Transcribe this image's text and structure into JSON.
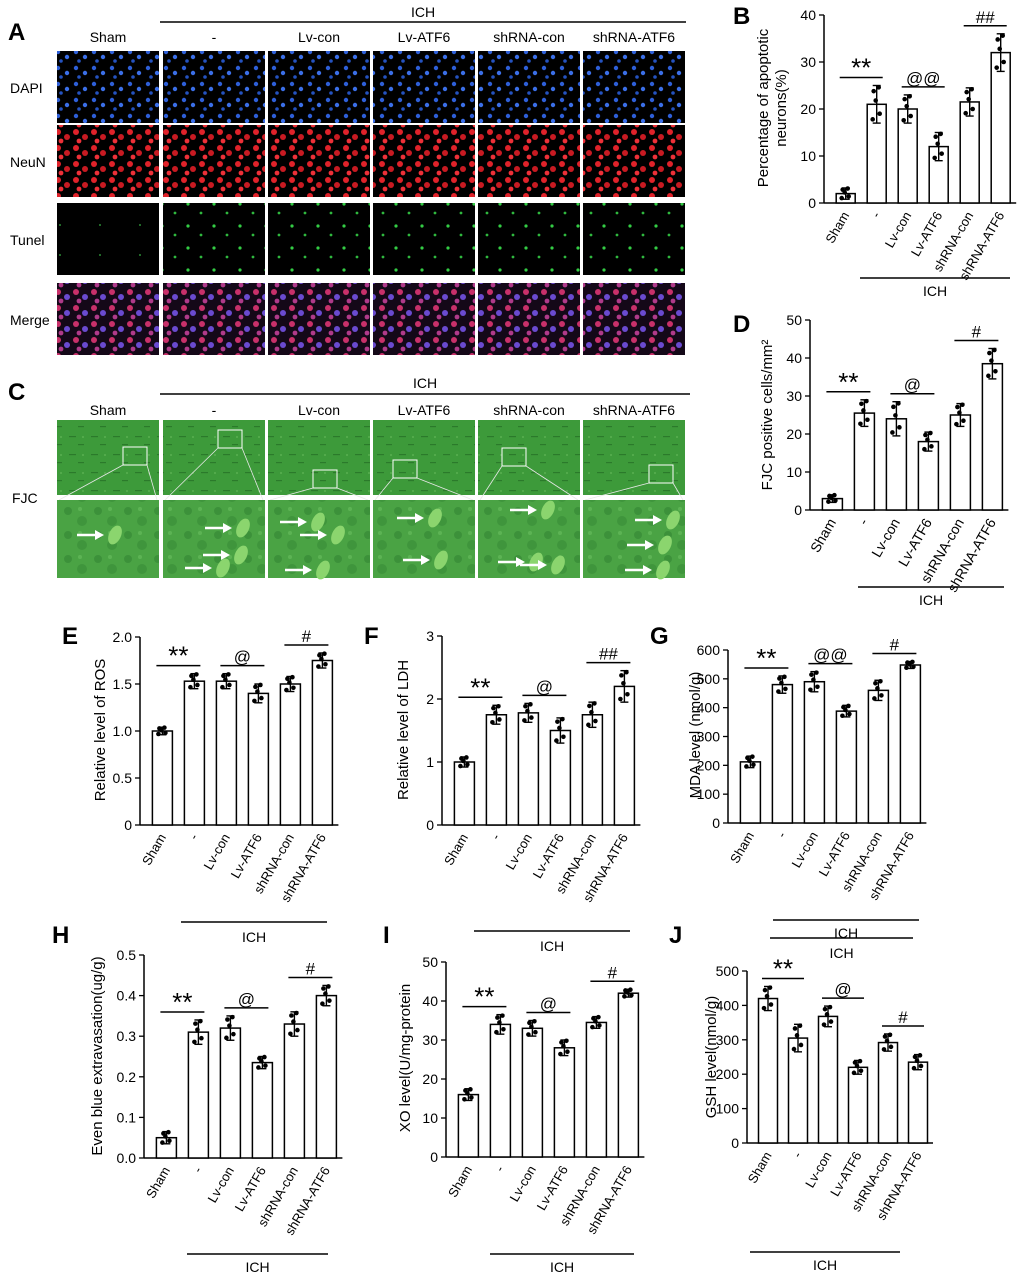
{
  "panels": {
    "A": {
      "letter": "A",
      "group_label": "ICH",
      "columns": [
        "Sham",
        "-",
        "Lv-con",
        "Lv-ATF6",
        "shRNA-con",
        "shRNA-ATF6"
      ],
      "rows": [
        "DAPI",
        "NeuN",
        "Tunel",
        "Merge"
      ],
      "colors": {
        "DAPI": "#2e5fd8",
        "NeuN": "#e0222a",
        "Tunel": "#33cc44",
        "Merge": "#b04a8a"
      }
    },
    "C": {
      "letter": "C",
      "group_label": "ICH",
      "columns": [
        "Sham",
        "-",
        "Lv-con",
        "Lv-ATF6",
        "shRNA-con",
        "shRNA-ATF6"
      ],
      "row_label": "FJC",
      "colors": {
        "tissue": "#3d9a3a",
        "tissue_zoom": "#4aa344",
        "cell": "#8bd56e"
      }
    }
  },
  "chart_data": [
    {
      "id": "B",
      "letter": "B",
      "type": "bar",
      "categories": [
        "Sham",
        "-",
        "Lv-con",
        "Lv-ATF6",
        "shRNA-con",
        "shRNA-ATF6"
      ],
      "values": [
        2,
        21,
        20,
        12,
        21.5,
        32
      ],
      "errors": [
        1.2,
        4,
        3,
        3,
        3,
        4
      ],
      "ylabel": "Percentage of apoptotic neurons(%)",
      "ylabel_lines": [
        "Percentage of apoptotic",
        "neurons(%)"
      ],
      "ylim": [
        0,
        40
      ],
      "yticks": [
        "0",
        "10",
        "20",
        "30",
        "40"
      ],
      "group_label": "ICH",
      "significance": [
        {
          "from": 0,
          "to": 1,
          "label": "**"
        },
        {
          "from": 2,
          "to": 3,
          "label": "@@"
        },
        {
          "from": 4,
          "to": 5,
          "label": "##"
        }
      ]
    },
    {
      "id": "D",
      "letter": "D",
      "type": "bar",
      "categories": [
        "Sham",
        "-",
        "Lv-con",
        "Lv-ATF6",
        "shRNA-con",
        "shRNA-ATF6"
      ],
      "values": [
        3,
        25.5,
        24,
        18,
        25,
        38.5
      ],
      "errors": [
        1,
        3.5,
        4.5,
        2.5,
        3,
        4
      ],
      "ylabel": "FJC positive cells/mm²",
      "ylabel_lines": [
        "FJC positive cells/mm²"
      ],
      "ylim": [
        0,
        50
      ],
      "yticks": [
        "0",
        "10",
        "20",
        "30",
        "40",
        "50"
      ],
      "group_label": "ICH",
      "significance": [
        {
          "from": 0,
          "to": 1,
          "label": "**"
        },
        {
          "from": 2,
          "to": 3,
          "label": "@"
        },
        {
          "from": 4,
          "to": 5,
          "label": "#"
        }
      ]
    },
    {
      "id": "E",
      "letter": "E",
      "type": "bar",
      "categories": [
        "Sham",
        "-",
        "Lv-con",
        "Lv-ATF6",
        "shRNA-con",
        "shRNA-ATF6"
      ],
      "values": [
        1.0,
        1.53,
        1.53,
        1.4,
        1.5,
        1.75
      ],
      "errors": [
        0.04,
        0.08,
        0.08,
        0.1,
        0.08,
        0.08
      ],
      "ylabel": "Relative level of ROS",
      "ylabel_lines": [
        "Relative level of ROS"
      ],
      "ylim": [
        0,
        2.0
      ],
      "yticks": [
        "0",
        "0.5",
        "1.0",
        "1.5",
        "2.0"
      ],
      "group_label": "",
      "significance": [
        {
          "from": 0,
          "to": 1,
          "label": "**"
        },
        {
          "from": 2,
          "to": 3,
          "label": "@"
        },
        {
          "from": 4,
          "to": 5,
          "label": "#"
        }
      ]
    },
    {
      "id": "F",
      "letter": "F",
      "type": "bar",
      "categories": [
        "Sham",
        "-",
        "Lv-con",
        "Lv-ATF6",
        "shRNA-con",
        "shRNA-ATF6"
      ],
      "values": [
        1.0,
        1.75,
        1.78,
        1.5,
        1.75,
        2.2
      ],
      "errors": [
        0.08,
        0.15,
        0.15,
        0.2,
        0.2,
        0.25
      ],
      "ylabel": "Relative level of LDH",
      "ylabel_lines": [
        "Relative level of LDH"
      ],
      "ylim": [
        0,
        3
      ],
      "yticks": [
        "0",
        "1",
        "2",
        "3"
      ],
      "group_label": "",
      "significance": [
        {
          "from": 0,
          "to": 1,
          "label": "**"
        },
        {
          "from": 2,
          "to": 3,
          "label": "@"
        },
        {
          "from": 4,
          "to": 5,
          "label": "##"
        }
      ]
    },
    {
      "id": "G",
      "letter": "G",
      "type": "bar",
      "categories": [
        "Sham",
        "-",
        "Lv-con",
        "Lv-ATF6",
        "shRNA-con",
        "shRNA-ATF6"
      ],
      "values": [
        212,
        480,
        490,
        388,
        460,
        548
      ],
      "errors": [
        20,
        30,
        35,
        20,
        35,
        12
      ],
      "ylabel": "MDA level (nmol/g)",
      "ylabel_lines": [
        "MDA level (nmol/g)"
      ],
      "ylim": [
        0,
        600
      ],
      "yticks": [
        "0",
        "100",
        "200",
        "300",
        "400",
        "500",
        "600"
      ],
      "group_label": "ICH",
      "significance": [
        {
          "from": 0,
          "to": 1,
          "label": "**"
        },
        {
          "from": 2,
          "to": 3,
          "label": "@@"
        },
        {
          "from": 4,
          "to": 5,
          "label": "#"
        }
      ]
    },
    {
      "id": "H",
      "letter": "H",
      "type": "bar",
      "categories": [
        "Sham",
        "-",
        "Lv-con",
        "Lv-ATF6",
        "shRNA-con",
        "shRNA-ATF6"
      ],
      "values": [
        0.05,
        0.31,
        0.32,
        0.235,
        0.33,
        0.4
      ],
      "errors": [
        0.015,
        0.03,
        0.03,
        0.015,
        0.03,
        0.025
      ],
      "ylabel": "Even blue extravasation(ug/g)",
      "ylabel_lines": [
        "Even blue extravasation(ug/g)"
      ],
      "ylim": [
        0,
        0.5
      ],
      "yticks": [
        "0.0",
        "0.1",
        "0.2",
        "0.3",
        "0.4",
        "0.5"
      ],
      "group_label": "ICH",
      "group_label_top": "ICH",
      "significance": [
        {
          "from": 0,
          "to": 1,
          "label": "**"
        },
        {
          "from": 2,
          "to": 3,
          "label": "@"
        },
        {
          "from": 4,
          "to": 5,
          "label": "#"
        }
      ]
    },
    {
      "id": "I",
      "letter": "I",
      "type": "bar",
      "categories": [
        "Sham",
        "-",
        "Lv-con",
        "Lv-ATF6",
        "shRNA-con",
        "shRNA-ATF6"
      ],
      "values": [
        16,
        34,
        33,
        28,
        34.5,
        42
      ],
      "errors": [
        1.5,
        2.5,
        2,
        2,
        1.5,
        1
      ],
      "ylabel": "XO level(U/mg-protein",
      "ylabel_lines": [
        "XO level(U/mg-protein"
      ],
      "ylim": [
        0,
        50
      ],
      "yticks": [
        "0",
        "10",
        "20",
        "30",
        "40",
        "50"
      ],
      "group_label": "ICH",
      "group_label_top": "ICH",
      "significance": [
        {
          "from": 0,
          "to": 1,
          "label": "**"
        },
        {
          "from": 2,
          "to": 3,
          "label": "@"
        },
        {
          "from": 4,
          "to": 5,
          "label": "#"
        }
      ]
    },
    {
      "id": "J",
      "letter": "J",
      "type": "bar",
      "categories": [
        "Sham",
        "-",
        "Lv-con",
        "Lv-ATF6",
        "shRNA-con",
        "shRNA-ATF6"
      ],
      "values": [
        420,
        305,
        368,
        220,
        292,
        235
      ],
      "errors": [
        35,
        40,
        30,
        20,
        25,
        22
      ],
      "ylabel": "GSH level(nmol/g)",
      "ylabel_lines": [
        "GSH level(nmol/g)"
      ],
      "ylim": [
        0,
        500
      ],
      "yticks": [
        "0",
        "100",
        "200",
        "300",
        "400",
        "500"
      ],
      "group_label": "ICH",
      "group_label_top": "ICH",
      "significance": [
        {
          "from": 0,
          "to": 1,
          "label": "**"
        },
        {
          "from": 2,
          "to": 3,
          "label": "@"
        },
        {
          "from": 4,
          "to": 5,
          "label": "#"
        }
      ]
    }
  ]
}
